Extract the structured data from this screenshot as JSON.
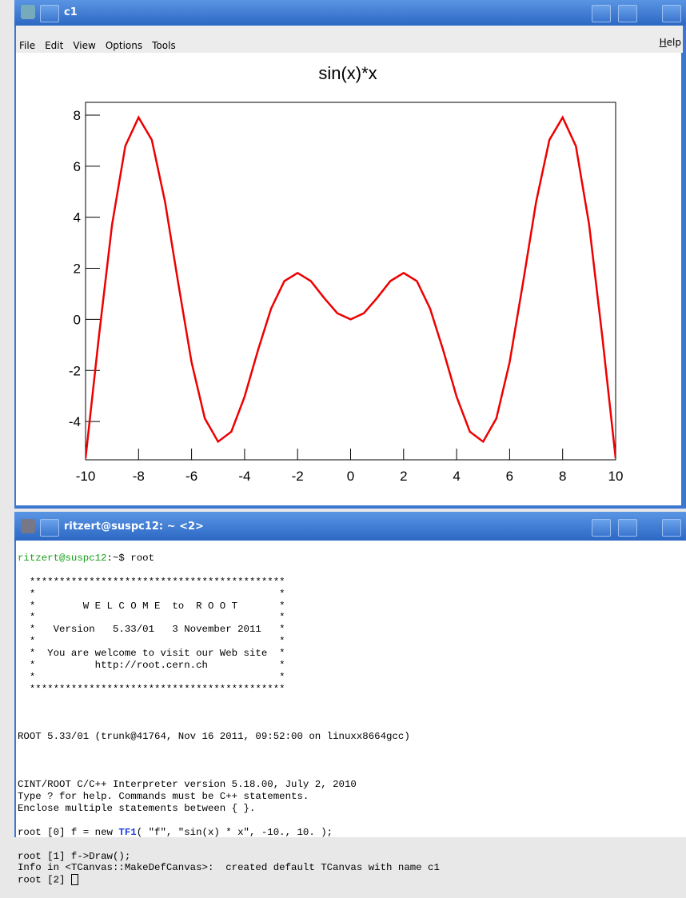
{
  "window": {
    "title": "c1",
    "menu": [
      "File",
      "Edit",
      "View",
      "Options",
      "Tools"
    ],
    "help": "Help"
  },
  "chart_data": {
    "type": "line",
    "title": "sin(x)*x",
    "x": [
      -10,
      -9.5,
      -9,
      -8.5,
      -8,
      -7.5,
      -7,
      -6.5,
      -6,
      -5.5,
      -5,
      -4.5,
      -4,
      -3.5,
      -3,
      -2.5,
      -2,
      -1.5,
      -1,
      -0.5,
      0,
      0.5,
      1,
      1.5,
      2,
      2.5,
      3,
      3.5,
      4,
      4.5,
      5,
      5.5,
      6,
      6.5,
      7,
      7.5,
      8,
      8.5,
      9,
      9.5,
      10
    ],
    "values": [
      -5.44,
      -0.71,
      3.71,
      6.79,
      7.91,
      7.03,
      4.6,
      1.4,
      -1.68,
      -3.88,
      -4.79,
      -4.4,
      -3.03,
      -1.23,
      0.42,
      1.5,
      1.82,
      1.5,
      0.84,
      0.24,
      0,
      0.24,
      0.84,
      1.5,
      1.82,
      1.5,
      0.42,
      -1.23,
      -3.03,
      -4.4,
      -4.79,
      -3.88,
      -1.68,
      1.4,
      4.6,
      7.03,
      7.91,
      6.79,
      3.71,
      -0.71,
      -5.44
    ],
    "color": "#ee0000",
    "xlim": [
      -10,
      10
    ],
    "xticks": [
      -10,
      -8,
      -6,
      -4,
      -2,
      0,
      2,
      4,
      6,
      8,
      10
    ],
    "ylim": [
      -5.5,
      8.5
    ],
    "yticks": [
      -4,
      -2,
      0,
      2,
      4,
      6,
      8
    ]
  },
  "terminal": {
    "title": "ritzert@suspc12: ~ <2>",
    "prompt": "ritzert@suspc12",
    "first_command": ":~$ root",
    "banner": [
      "  *******************************************",
      "  *                                         *",
      "  *        W E L C O M E  to  R O O T       *",
      "  *                                         *",
      "  *   Version   5.33/01   3 November 2011   *",
      "  *                                         *",
      "  *  You are welcome to visit our Web site  *",
      "  *          http://root.cern.ch            *",
      "  *                                         *",
      "  *******************************************"
    ],
    "version_line": "ROOT 5.33/01 (trunk@41764, Nov 16 2011, 09:52:00 on linuxx8664gcc)",
    "info": [
      "CINT/ROOT C/C++ Interpreter version 5.18.00, July 2, 2010",
      "Type ? for help. Commands must be C++ statements.",
      "Enclose multiple statements between { }."
    ],
    "cmd0": {
      "before": "root [0] f = new ",
      "keyword": "TF1",
      "after": "( \"f\", \"sin(x) * x\", -10., 10. );"
    },
    "rest": [
      "root [1] f->Draw();",
      "Info in <TCanvas::MakeDefCanvas>:  created default TCanvas with name c1",
      "root [2] "
    ]
  }
}
